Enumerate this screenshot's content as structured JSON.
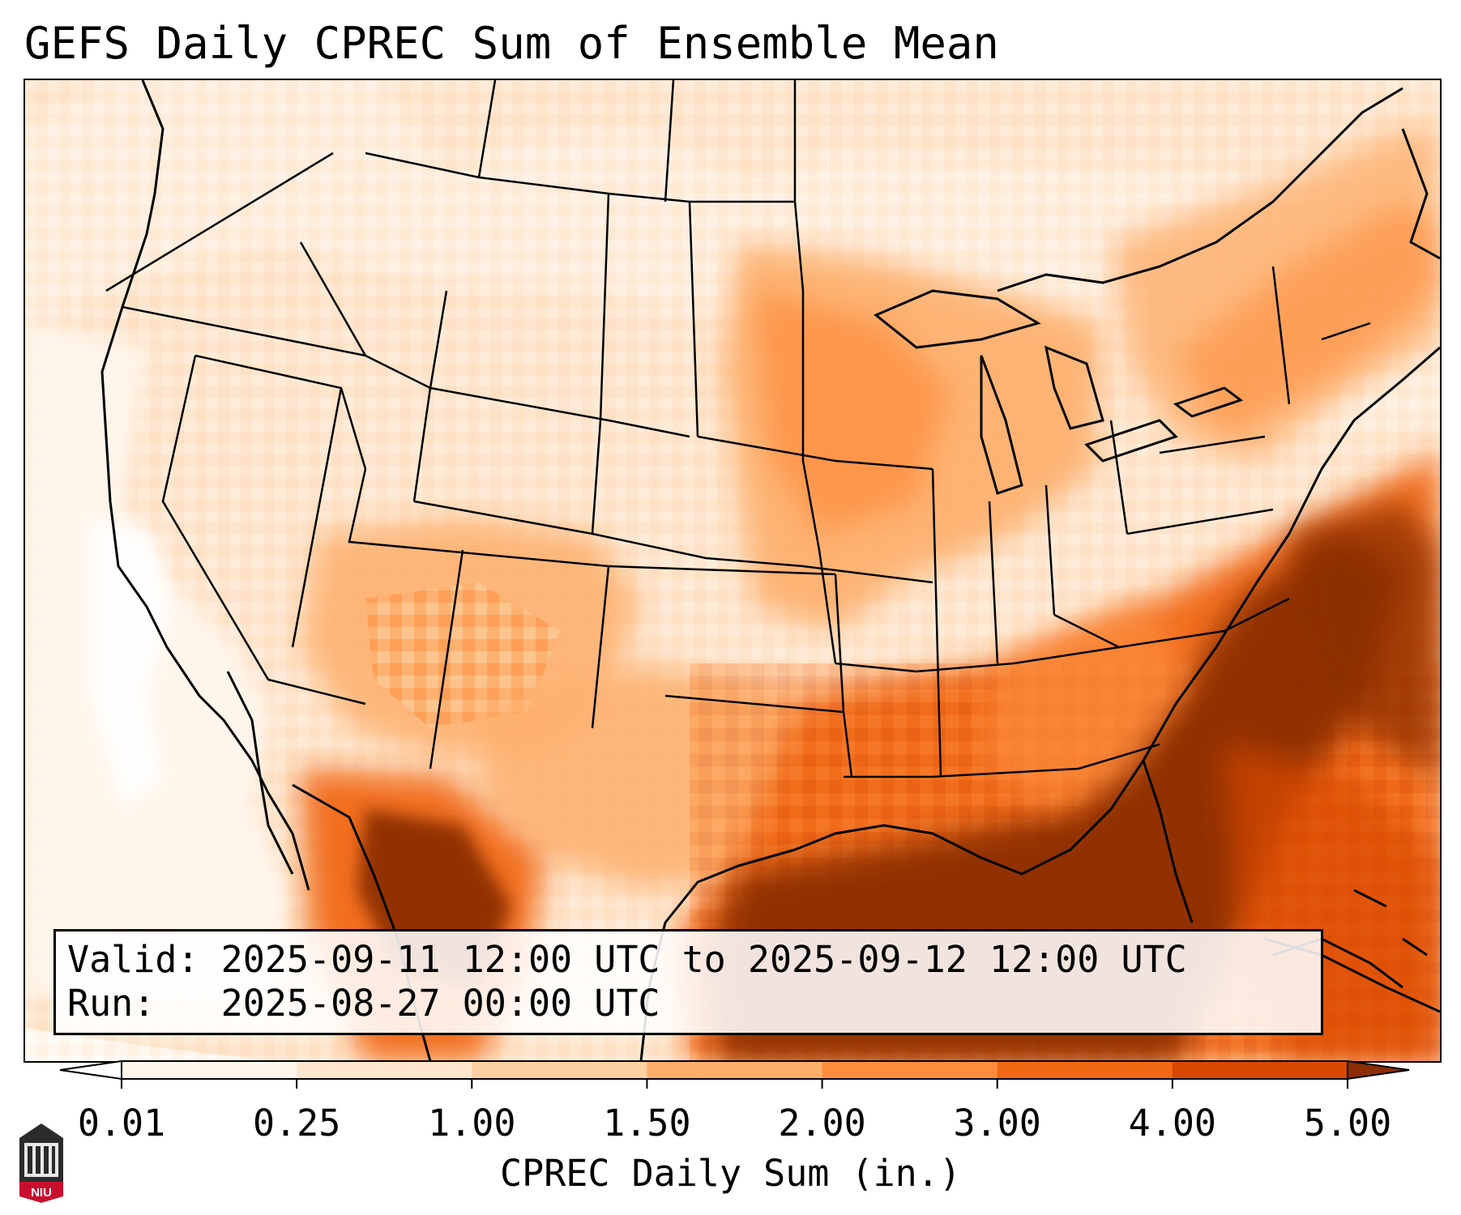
{
  "title": "GEFS Daily CPREC Sum of Ensemble Mean",
  "info": {
    "valid_label": "Valid:",
    "valid_value": "2025-09-11 12:00 UTC to 2025-09-12 12:00 UTC",
    "run_label": "Run:",
    "run_value": "2025-08-27 00:00 UTC"
  },
  "colorbar": {
    "label": "CPREC Daily Sum (in.)",
    "ticks": [
      "0.01",
      "0.25",
      "1.00",
      "1.50",
      "2.00",
      "3.00",
      "4.00",
      "5.00"
    ],
    "colors": [
      "#fff5eb",
      "#fee6ce",
      "#fdd0a2",
      "#fdae6b",
      "#fd8d3c",
      "#f16913",
      "#d94801",
      "#8c2d04"
    ],
    "under_color": "#ffffff",
    "over_color": "#8c2d04"
  },
  "map": {
    "projection": "lambert-conformal",
    "region": "CONUS",
    "base_color": "#fee6ce",
    "outline_color": "#000000"
  },
  "logo": {
    "text": "NIU",
    "icon": "niu-tower-icon"
  }
}
